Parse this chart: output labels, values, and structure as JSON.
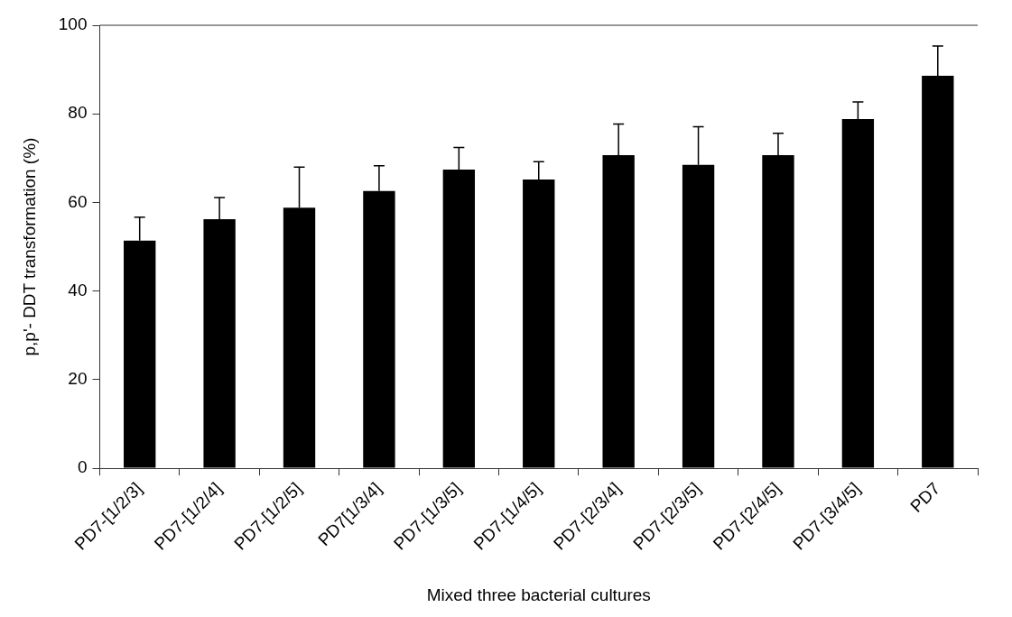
{
  "chart_data": {
    "type": "bar",
    "xlabel": "Mixed three bacterial cultures",
    "ylabel": "p,p'- DDT transformation (%)",
    "categories": [
      "PD7-[1/2/3]",
      "PD7-[1/2/4]",
      "PD7-[1/2/5]",
      "PD7[1/3/4]",
      "PD7-[1/3/5]",
      "PD7-[1/4/5]",
      "PD7-[2/3/4]",
      "PD7-[2/3/5]",
      "PD7-[2/4/5]",
      "PD7-[3/4/5]",
      "PD7"
    ],
    "values": [
      51.4,
      56.2,
      58.8,
      62.6,
      67.4,
      65.2,
      70.7,
      68.5,
      70.7,
      78.8,
      88.6
    ],
    "errors": [
      [
        51.4,
        56.7
      ],
      [
        56.2,
        61.1
      ],
      [
        58.8,
        68.0
      ],
      [
        62.6,
        68.3
      ],
      [
        67.4,
        72.4
      ],
      [
        65.2,
        69.2
      ],
      [
        70.7,
        77.7
      ],
      [
        68.5,
        77.1
      ],
      [
        70.7,
        75.6
      ],
      [
        78.8,
        82.7
      ],
      [
        88.6,
        95.3
      ]
    ],
    "color": "#000000",
    "ylim": [
      0,
      100
    ],
    "yticks": [
      0,
      20,
      40,
      60,
      80,
      100
    ],
    "grid": false,
    "legend": false
  }
}
